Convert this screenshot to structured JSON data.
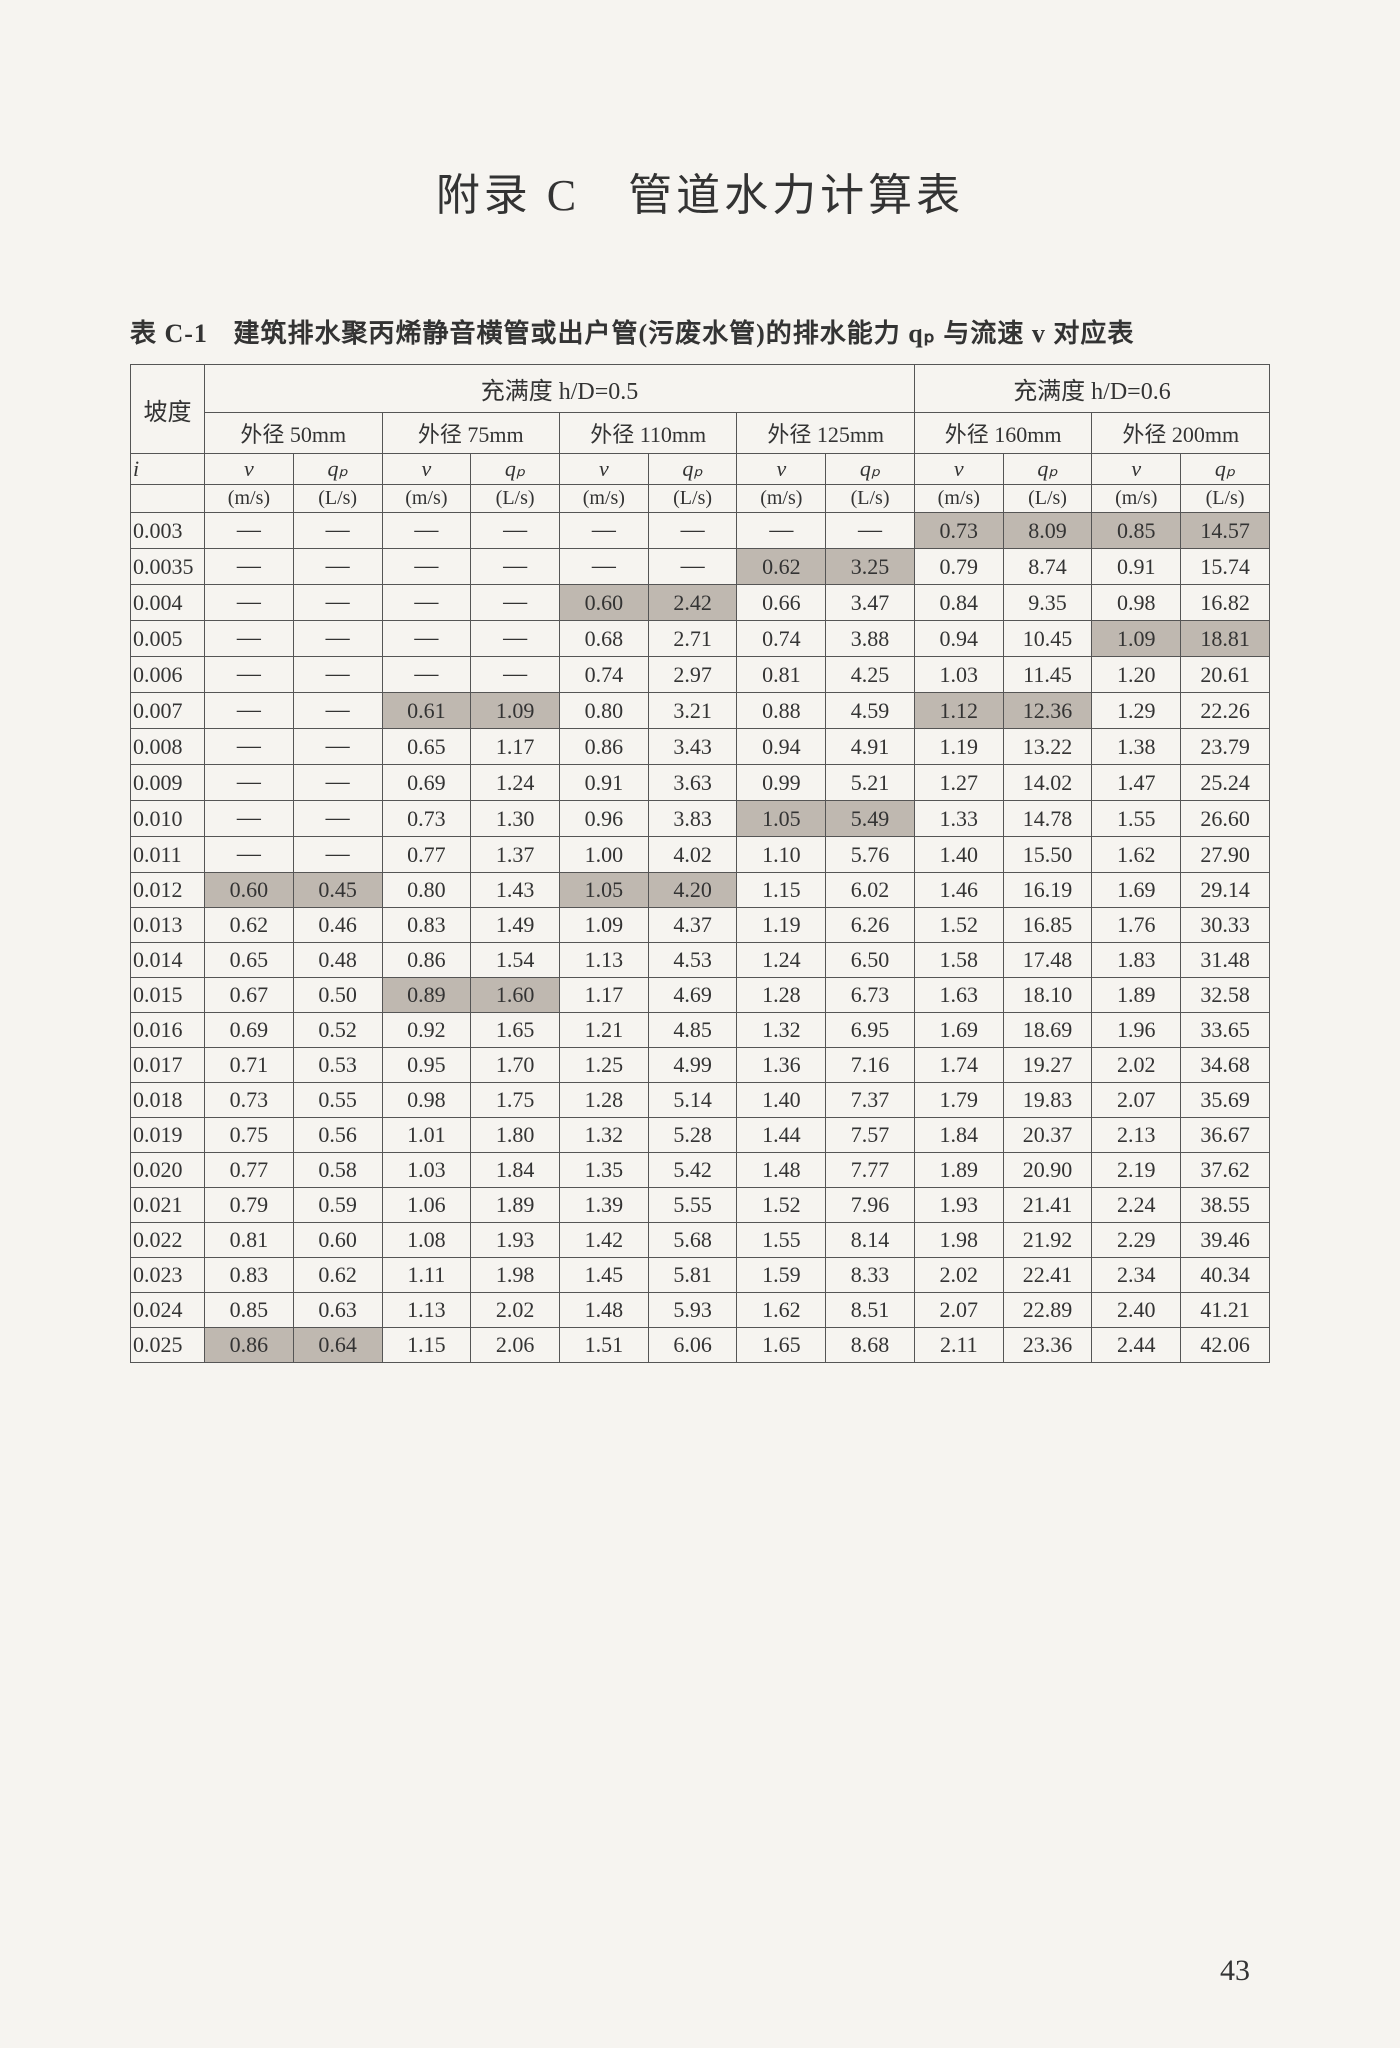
{
  "title": "附录 C　管道水力计算表",
  "caption_label": "表 C-1",
  "caption_text": "建筑排水聚丙烯静音横管或出户管(污废水管)的排水能力 qₚ 与流速 v 对应表",
  "hD": {
    "left": "充满度 h/D=0.5",
    "right": "充满度 h/D=0.6"
  },
  "slope_header": "坡度",
  "slope_symbol": "i",
  "diameters": [
    "外径 50mm",
    "外径 75mm",
    "外径 110mm",
    "外径 125mm",
    "外径 160mm",
    "外径 200mm"
  ],
  "symbols": {
    "v": "v",
    "qp": "qₚ",
    "v_unit": "(m/s)",
    "qp_unit": "(L/s)"
  },
  "dash": "—",
  "page_number": "43",
  "colors": {
    "shade": "#bfb8b0"
  },
  "rows": [
    {
      "i": "0.003",
      "c": [
        null,
        null,
        null,
        null,
        null,
        null,
        null,
        null,
        "0.73",
        "8.09",
        "0.85",
        "14.57"
      ],
      "s": [
        0,
        0,
        0,
        0,
        0,
        0,
        0,
        0,
        1,
        1,
        1,
        1
      ]
    },
    {
      "i": "0.0035",
      "c": [
        null,
        null,
        null,
        null,
        null,
        null,
        "0.62",
        "3.25",
        "0.79",
        "8.74",
        "0.91",
        "15.74"
      ],
      "s": [
        0,
        0,
        0,
        0,
        0,
        0,
        1,
        1,
        0,
        0,
        0,
        0
      ]
    },
    {
      "i": "0.004",
      "c": [
        null,
        null,
        null,
        null,
        "0.60",
        "2.42",
        "0.66",
        "3.47",
        "0.84",
        "9.35",
        "0.98",
        "16.82"
      ],
      "s": [
        0,
        0,
        0,
        0,
        1,
        1,
        0,
        0,
        0,
        0,
        0,
        0
      ]
    },
    {
      "i": "0.005",
      "c": [
        null,
        null,
        null,
        null,
        "0.68",
        "2.71",
        "0.74",
        "3.88",
        "0.94",
        "10.45",
        "1.09",
        "18.81"
      ],
      "s": [
        0,
        0,
        0,
        0,
        0,
        0,
        0,
        0,
        0,
        0,
        1,
        1
      ]
    },
    {
      "i": "0.006",
      "c": [
        null,
        null,
        null,
        null,
        "0.74",
        "2.97",
        "0.81",
        "4.25",
        "1.03",
        "11.45",
        "1.20",
        "20.61"
      ],
      "s": [
        0,
        0,
        0,
        0,
        0,
        0,
        0,
        0,
        0,
        0,
        0,
        0
      ]
    },
    {
      "i": "0.007",
      "c": [
        null,
        null,
        "0.61",
        "1.09",
        "0.80",
        "3.21",
        "0.88",
        "4.59",
        "1.12",
        "12.36",
        "1.29",
        "22.26"
      ],
      "s": [
        0,
        0,
        1,
        1,
        0,
        0,
        0,
        0,
        1,
        1,
        0,
        0
      ]
    },
    {
      "i": "0.008",
      "c": [
        null,
        null,
        "0.65",
        "1.17",
        "0.86",
        "3.43",
        "0.94",
        "4.91",
        "1.19",
        "13.22",
        "1.38",
        "23.79"
      ],
      "s": [
        0,
        0,
        0,
        0,
        0,
        0,
        0,
        0,
        0,
        0,
        0,
        0
      ]
    },
    {
      "i": "0.009",
      "c": [
        null,
        null,
        "0.69",
        "1.24",
        "0.91",
        "3.63",
        "0.99",
        "5.21",
        "1.27",
        "14.02",
        "1.47",
        "25.24"
      ],
      "s": [
        0,
        0,
        0,
        0,
        0,
        0,
        0,
        0,
        0,
        0,
        0,
        0
      ]
    },
    {
      "i": "0.010",
      "c": [
        null,
        null,
        "0.73",
        "1.30",
        "0.96",
        "3.83",
        "1.05",
        "5.49",
        "1.33",
        "14.78",
        "1.55",
        "26.60"
      ],
      "s": [
        0,
        0,
        0,
        0,
        0,
        0,
        1,
        1,
        0,
        0,
        0,
        0
      ]
    },
    {
      "i": "0.011",
      "c": [
        null,
        null,
        "0.77",
        "1.37",
        "1.00",
        "4.02",
        "1.10",
        "5.76",
        "1.40",
        "15.50",
        "1.62",
        "27.90"
      ],
      "s": [
        0,
        0,
        0,
        0,
        0,
        0,
        0,
        0,
        0,
        0,
        0,
        0
      ]
    },
    {
      "i": "0.012",
      "c": [
        "0.60",
        "0.45",
        "0.80",
        "1.43",
        "1.05",
        "4.20",
        "1.15",
        "6.02",
        "1.46",
        "16.19",
        "1.69",
        "29.14"
      ],
      "s": [
        1,
        1,
        0,
        0,
        1,
        1,
        0,
        0,
        0,
        0,
        0,
        0
      ]
    },
    {
      "i": "0.013",
      "c": [
        "0.62",
        "0.46",
        "0.83",
        "1.49",
        "1.09",
        "4.37",
        "1.19",
        "6.26",
        "1.52",
        "16.85",
        "1.76",
        "30.33"
      ],
      "s": [
        0,
        0,
        0,
        0,
        0,
        0,
        0,
        0,
        0,
        0,
        0,
        0
      ]
    },
    {
      "i": "0.014",
      "c": [
        "0.65",
        "0.48",
        "0.86",
        "1.54",
        "1.13",
        "4.53",
        "1.24",
        "6.50",
        "1.58",
        "17.48",
        "1.83",
        "31.48"
      ],
      "s": [
        0,
        0,
        0,
        0,
        0,
        0,
        0,
        0,
        0,
        0,
        0,
        0
      ]
    },
    {
      "i": "0.015",
      "c": [
        "0.67",
        "0.50",
        "0.89",
        "1.60",
        "1.17",
        "4.69",
        "1.28",
        "6.73",
        "1.63",
        "18.10",
        "1.89",
        "32.58"
      ],
      "s": [
        0,
        0,
        1,
        1,
        0,
        0,
        0,
        0,
        0,
        0,
        0,
        0
      ]
    },
    {
      "i": "0.016",
      "c": [
        "0.69",
        "0.52",
        "0.92",
        "1.65",
        "1.21",
        "4.85",
        "1.32",
        "6.95",
        "1.69",
        "18.69",
        "1.96",
        "33.65"
      ],
      "s": [
        0,
        0,
        0,
        0,
        0,
        0,
        0,
        0,
        0,
        0,
        0,
        0
      ]
    },
    {
      "i": "0.017",
      "c": [
        "0.71",
        "0.53",
        "0.95",
        "1.70",
        "1.25",
        "4.99",
        "1.36",
        "7.16",
        "1.74",
        "19.27",
        "2.02",
        "34.68"
      ],
      "s": [
        0,
        0,
        0,
        0,
        0,
        0,
        0,
        0,
        0,
        0,
        0,
        0
      ]
    },
    {
      "i": "0.018",
      "c": [
        "0.73",
        "0.55",
        "0.98",
        "1.75",
        "1.28",
        "5.14",
        "1.40",
        "7.37",
        "1.79",
        "19.83",
        "2.07",
        "35.69"
      ],
      "s": [
        0,
        0,
        0,
        0,
        0,
        0,
        0,
        0,
        0,
        0,
        0,
        0
      ]
    },
    {
      "i": "0.019",
      "c": [
        "0.75",
        "0.56",
        "1.01",
        "1.80",
        "1.32",
        "5.28",
        "1.44",
        "7.57",
        "1.84",
        "20.37",
        "2.13",
        "36.67"
      ],
      "s": [
        0,
        0,
        0,
        0,
        0,
        0,
        0,
        0,
        0,
        0,
        0,
        0
      ]
    },
    {
      "i": "0.020",
      "c": [
        "0.77",
        "0.58",
        "1.03",
        "1.84",
        "1.35",
        "5.42",
        "1.48",
        "7.77",
        "1.89",
        "20.90",
        "2.19",
        "37.62"
      ],
      "s": [
        0,
        0,
        0,
        0,
        0,
        0,
        0,
        0,
        0,
        0,
        0,
        0
      ]
    },
    {
      "i": "0.021",
      "c": [
        "0.79",
        "0.59",
        "1.06",
        "1.89",
        "1.39",
        "5.55",
        "1.52",
        "7.96",
        "1.93",
        "21.41",
        "2.24",
        "38.55"
      ],
      "s": [
        0,
        0,
        0,
        0,
        0,
        0,
        0,
        0,
        0,
        0,
        0,
        0
      ]
    },
    {
      "i": "0.022",
      "c": [
        "0.81",
        "0.60",
        "1.08",
        "1.93",
        "1.42",
        "5.68",
        "1.55",
        "8.14",
        "1.98",
        "21.92",
        "2.29",
        "39.46"
      ],
      "s": [
        0,
        0,
        0,
        0,
        0,
        0,
        0,
        0,
        0,
        0,
        0,
        0
      ]
    },
    {
      "i": "0.023",
      "c": [
        "0.83",
        "0.62",
        "1.11",
        "1.98",
        "1.45",
        "5.81",
        "1.59",
        "8.33",
        "2.02",
        "22.41",
        "2.34",
        "40.34"
      ],
      "s": [
        0,
        0,
        0,
        0,
        0,
        0,
        0,
        0,
        0,
        0,
        0,
        0
      ]
    },
    {
      "i": "0.024",
      "c": [
        "0.85",
        "0.63",
        "1.13",
        "2.02",
        "1.48",
        "5.93",
        "1.62",
        "8.51",
        "2.07",
        "22.89",
        "2.40",
        "41.21"
      ],
      "s": [
        0,
        0,
        0,
        0,
        0,
        0,
        0,
        0,
        0,
        0,
        0,
        0
      ]
    },
    {
      "i": "0.025",
      "c": [
        "0.86",
        "0.64",
        "1.15",
        "2.06",
        "1.51",
        "6.06",
        "1.65",
        "8.68",
        "2.11",
        "23.36",
        "2.44",
        "42.06"
      ],
      "s": [
        1,
        1,
        0,
        0,
        0,
        0,
        0,
        0,
        0,
        0,
        0,
        0
      ]
    }
  ]
}
